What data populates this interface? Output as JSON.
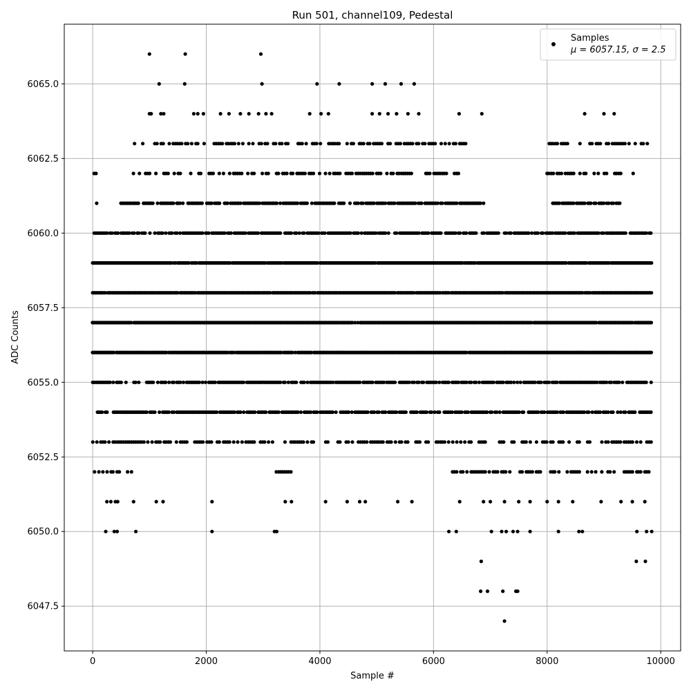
{
  "chart_data": {
    "type": "scatter",
    "title": "Run 501, channel109, Pedestal",
    "xlabel": "Sample #",
    "ylabel": "ADC Counts",
    "xlim": [
      -500,
      10350
    ],
    "ylim": [
      6046.0,
      6067.0
    ],
    "x_ticks": [
      0,
      2000,
      4000,
      6000,
      8000,
      10000
    ],
    "x_tick_labels": [
      "0",
      "2000",
      "4000",
      "6000",
      "8000",
      "10000"
    ],
    "y_ticks": [
      6047.5,
      6050.0,
      6052.5,
      6055.0,
      6057.5,
      6060.0,
      6062.5,
      6065.0
    ],
    "y_tick_labels": [
      "6047.5",
      "6050.0",
      "6052.5",
      "6055.0",
      "6057.5",
      "6060.0",
      "6062.5",
      "6065.0"
    ],
    "grid": true,
    "legend_position": "top-right",
    "series": [
      {
        "name": "Samples",
        "color": "#000000",
        "marker": "dot",
        "stats_label": "μ = 6057.15, σ = 2.5",
        "bands": [
          {
            "y": 6056,
            "ranges": [
              [
                0,
                9850
              ]
            ]
          },
          {
            "y": 6057,
            "ranges": [
              [
                0,
                9850
              ]
            ]
          },
          {
            "y": 6058,
            "ranges": [
              [
                0,
                9850
              ]
            ]
          },
          {
            "y": 6055,
            "ranges": [
              [
                0,
                9850
              ]
            ]
          },
          {
            "y": 6059,
            "ranges": [
              [
                0,
                9850
              ]
            ]
          },
          {
            "y": 6054,
            "ranges": [
              [
                0,
                9850
              ]
            ]
          },
          {
            "y": 6060,
            "ranges": [
              [
                0,
                9850
              ]
            ]
          },
          {
            "y": 6053,
            "ranges": [
              [
                0,
                9850
              ]
            ]
          },
          {
            "y": 6061,
            "ranges": [
              [
                500,
                6900
              ],
              [
                8100,
                9300
              ]
            ]
          },
          {
            "y": 6062,
            "ranges": [
              [
                500,
                6700
              ],
              [
                8000,
                9600
              ]
            ]
          },
          {
            "y": 6052,
            "ranges": [
              [
                0,
                700
              ],
              [
                3200,
                3500
              ],
              [
                6300,
                9850
              ]
            ]
          },
          {
            "y": 6063,
            "ranges": [
              [
                700,
                6700
              ],
              [
                8000,
                9850
              ]
            ]
          }
        ],
        "points": [
          [
            25,
            6062
          ],
          [
            70,
            6061
          ],
          [
            60,
            6062
          ],
          [
            1000,
            6066
          ],
          [
            1630,
            6066
          ],
          [
            2960,
            6066
          ],
          [
            1170,
            6065
          ],
          [
            1620,
            6065
          ],
          [
            2980,
            6065
          ],
          [
            3950,
            6065
          ],
          [
            4340,
            6065
          ],
          [
            4920,
            6065
          ],
          [
            5150,
            6065
          ],
          [
            5430,
            6065
          ],
          [
            5660,
            6065
          ],
          [
            1000,
            6064
          ],
          [
            1030,
            6064
          ],
          [
            1200,
            6064
          ],
          [
            1250,
            6064
          ],
          [
            1780,
            6064
          ],
          [
            1850,
            6064
          ],
          [
            1950,
            6064
          ],
          [
            2250,
            6064
          ],
          [
            2400,
            6064
          ],
          [
            2600,
            6064
          ],
          [
            2750,
            6064
          ],
          [
            2920,
            6064
          ],
          [
            3050,
            6064
          ],
          [
            3150,
            6064
          ],
          [
            3820,
            6064
          ],
          [
            4020,
            6064
          ],
          [
            4150,
            6064
          ],
          [
            4920,
            6064
          ],
          [
            5050,
            6064
          ],
          [
            5200,
            6064
          ],
          [
            5350,
            6064
          ],
          [
            5550,
            6064
          ],
          [
            5740,
            6064
          ],
          [
            6450,
            6064
          ],
          [
            6850,
            6064
          ],
          [
            8660,
            6064
          ],
          [
            9000,
            6064
          ],
          [
            9180,
            6064
          ],
          [
            250,
            6051
          ],
          [
            320,
            6051
          ],
          [
            400,
            6051
          ],
          [
            440,
            6051
          ],
          [
            720,
            6051
          ],
          [
            1120,
            6051
          ],
          [
            1240,
            6051
          ],
          [
            2100,
            6051
          ],
          [
            3390,
            6051
          ],
          [
            3500,
            6051
          ],
          [
            4100,
            6051
          ],
          [
            4480,
            6051
          ],
          [
            4700,
            6051
          ],
          [
            4800,
            6051
          ],
          [
            5370,
            6051
          ],
          [
            5620,
            6051
          ],
          [
            6460,
            6051
          ],
          [
            6880,
            6051
          ],
          [
            7000,
            6051
          ],
          [
            7250,
            6051
          ],
          [
            7500,
            6051
          ],
          [
            7700,
            6051
          ],
          [
            8000,
            6051
          ],
          [
            8200,
            6051
          ],
          [
            8450,
            6051
          ],
          [
            8950,
            6051
          ],
          [
            9300,
            6051
          ],
          [
            9500,
            6051
          ],
          [
            9720,
            6051
          ],
          [
            230,
            6050
          ],
          [
            380,
            6050
          ],
          [
            430,
            6050
          ],
          [
            760,
            6050
          ],
          [
            2100,
            6050
          ],
          [
            3200,
            6050
          ],
          [
            3240,
            6050
          ],
          [
            6270,
            6050
          ],
          [
            6400,
            6050
          ],
          [
            7020,
            6050
          ],
          [
            7200,
            6050
          ],
          [
            7280,
            6050
          ],
          [
            7400,
            6050
          ],
          [
            7480,
            6050
          ],
          [
            7700,
            6050
          ],
          [
            8200,
            6050
          ],
          [
            8560,
            6050
          ],
          [
            8620,
            6050
          ],
          [
            9580,
            6050
          ],
          [
            9750,
            6050
          ],
          [
            9840,
            6050
          ],
          [
            6840,
            6049
          ],
          [
            9570,
            6049
          ],
          [
            9730,
            6049
          ],
          [
            6830,
            6048
          ],
          [
            6950,
            6048
          ],
          [
            7220,
            6048
          ],
          [
            7450,
            6048
          ],
          [
            7480,
            6048
          ],
          [
            7250,
            6047
          ]
        ]
      }
    ]
  }
}
